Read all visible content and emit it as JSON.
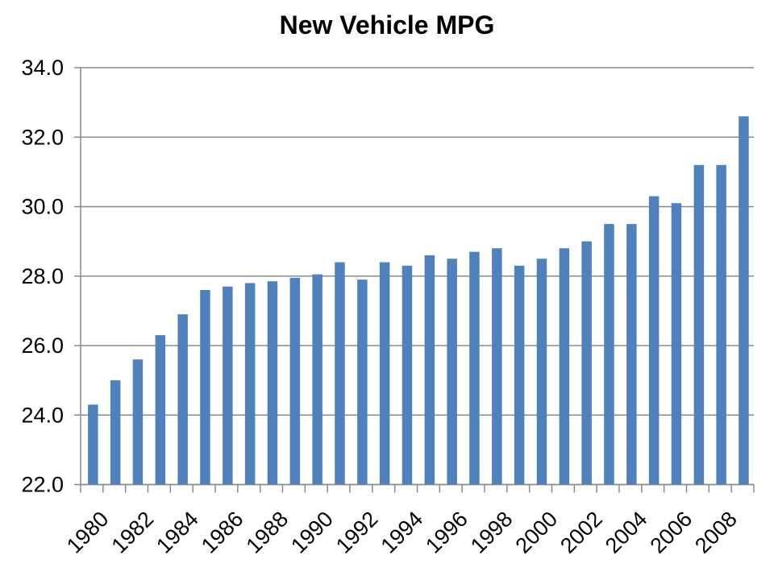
{
  "chart_data": {
    "type": "bar",
    "title": "New Vehicle MPG",
    "xlabel": "",
    "ylabel": "",
    "categories": [
      1980,
      1981,
      1982,
      1983,
      1984,
      1985,
      1986,
      1987,
      1988,
      1989,
      1990,
      1991,
      1992,
      1993,
      1994,
      1995,
      1996,
      1997,
      1998,
      1999,
      2000,
      2001,
      2002,
      2003,
      2004,
      2005,
      2006,
      2007,
      2008,
      2009
    ],
    "values": [
      24.3,
      25.0,
      25.6,
      26.3,
      26.9,
      27.6,
      27.7,
      27.8,
      27.85,
      27.95,
      28.05,
      28.4,
      27.9,
      28.4,
      28.3,
      28.6,
      28.5,
      28.7,
      28.8,
      28.3,
      28.5,
      28.8,
      29.0,
      29.5,
      29.5,
      30.3,
      30.1,
      31.2,
      31.2,
      32.6
    ],
    "ylim": [
      22.0,
      34.0
    ],
    "ytick_step": 2.0,
    "ytick_labels": [
      "22.0",
      "24.0",
      "26.0",
      "28.0",
      "30.0",
      "32.0",
      "34.0"
    ],
    "xtick_labels_shown": [
      "1980",
      "1982",
      "1984",
      "1986",
      "1988",
      "1990",
      "1992",
      "1994",
      "1996",
      "1998",
      "2000",
      "2002",
      "2004",
      "2006",
      "2008"
    ],
    "xtick_label_rotation_deg": -45,
    "grid": "horizontal",
    "legend": "none",
    "bar_color": "#4F81BD",
    "gridline_color": "#8A8A8A",
    "axis_color": "#8A8A8A",
    "text_color": "#000000",
    "background_color": "#FFFFFF"
  }
}
